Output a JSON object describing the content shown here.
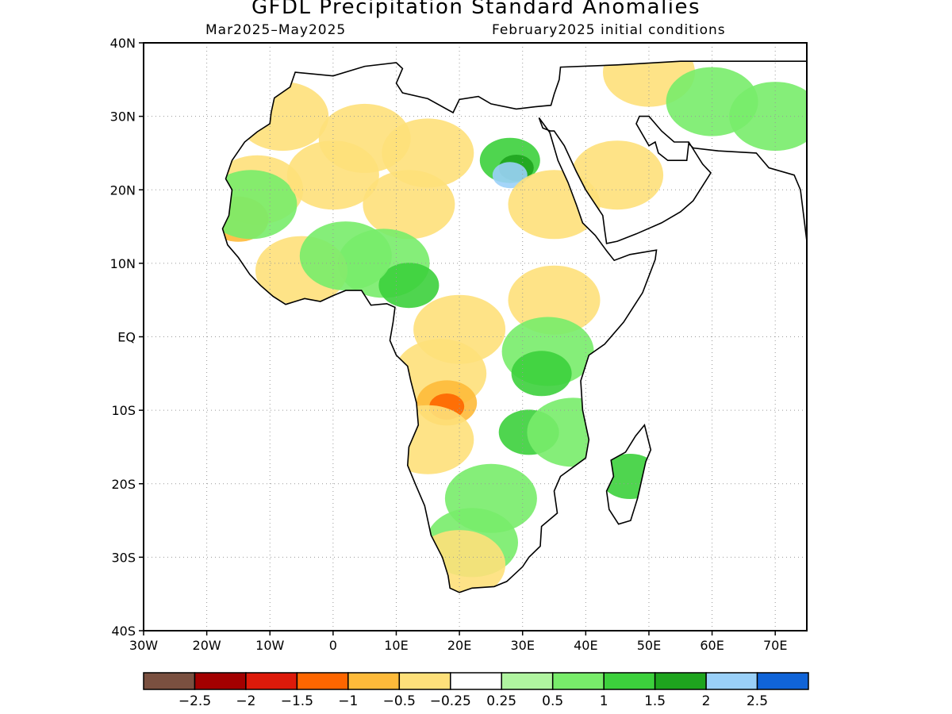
{
  "title": "GFDL Precipitation Standard Anomalies",
  "subtitle_left": "Mar2025–May2025",
  "subtitle_right": "February2025 initial conditions",
  "map": {
    "lon_range": [
      -30,
      75
    ],
    "lat_range": [
      -40,
      40
    ],
    "x_ticks": [
      {
        "lon": -30,
        "label": "30W"
      },
      {
        "lon": -20,
        "label": "20W"
      },
      {
        "lon": -10,
        "label": "10W"
      },
      {
        "lon": 0,
        "label": "0"
      },
      {
        "lon": 10,
        "label": "10E"
      },
      {
        "lon": 20,
        "label": "20E"
      },
      {
        "lon": 30,
        "label": "30E"
      },
      {
        "lon": 40,
        "label": "40E"
      },
      {
        "lon": 50,
        "label": "50E"
      },
      {
        "lon": 60,
        "label": "60E"
      },
      {
        "lon": 70,
        "label": "70E"
      }
    ],
    "y_ticks": [
      {
        "lat": 40,
        "label": "40N"
      },
      {
        "lat": 30,
        "label": "30N"
      },
      {
        "lat": 20,
        "label": "20N"
      },
      {
        "lat": 10,
        "label": "10N"
      },
      {
        "lat": 0,
        "label": "EQ"
      },
      {
        "lat": -10,
        "label": "10S"
      },
      {
        "lat": -20,
        "label": "20S"
      },
      {
        "lat": -30,
        "label": "30S"
      },
      {
        "lat": -40,
        "label": "40S"
      }
    ],
    "grid": true
  },
  "colorbar": {
    "colors": [
      "#7a5040",
      "#a30000",
      "#dd1a0a",
      "#fe6600",
      "#feba3a",
      "#fee07a",
      "#ffffff",
      "#b0f4a0",
      "#78ec6a",
      "#3cd03c",
      "#1ea41e",
      "#9ad0f8",
      "#1064d8"
    ],
    "labels": [
      "−2.5",
      "−2",
      "−1.5",
      "−1",
      "−0.5",
      "−0.25",
      "0.25",
      "0.5",
      "1",
      "1.5",
      "2",
      "2.5"
    ]
  },
  "anomaly_patches": [
    {
      "lon": -8,
      "lat": 30,
      "value": -0.5
    },
    {
      "lon": -12,
      "lat": 20,
      "value": -0.5
    },
    {
      "lon": -15,
      "lat": 16,
      "value": -1.0
    },
    {
      "lon": -13,
      "lat": 18,
      "value": 0.5
    },
    {
      "lon": 0,
      "lat": 22,
      "value": -0.5
    },
    {
      "lon": 5,
      "lat": 27,
      "value": -0.5
    },
    {
      "lon": 15,
      "lat": 25,
      "value": -0.5
    },
    {
      "lon": 12,
      "lat": 18,
      "value": -0.5
    },
    {
      "lon": 28,
      "lat": 24,
      "value": 1.0
    },
    {
      "lon": 29,
      "lat": 23,
      "value": 1.5
    },
    {
      "lon": 28,
      "lat": 22,
      "value": 2.0
    },
    {
      "lon": 35,
      "lat": 18,
      "value": -0.5
    },
    {
      "lon": 45,
      "lat": 22,
      "value": -0.5
    },
    {
      "lon": 50,
      "lat": 36,
      "value": -0.5
    },
    {
      "lon": 60,
      "lat": 32,
      "value": 0.5
    },
    {
      "lon": 70,
      "lat": 30,
      "value": 0.5
    },
    {
      "lon": 8,
      "lat": 10,
      "value": 0.5
    },
    {
      "lon": 12,
      "lat": 7,
      "value": 1.0
    },
    {
      "lon": -5,
      "lat": 9,
      "value": -0.5
    },
    {
      "lon": 2,
      "lat": 11,
      "value": 0.5
    },
    {
      "lon": 20,
      "lat": 1,
      "value": -0.5
    },
    {
      "lon": 17,
      "lat": -5,
      "value": -0.5
    },
    {
      "lon": 18,
      "lat": -9,
      "value": -1.0
    },
    {
      "lon": 18,
      "lat": -9.5,
      "value": -1.5
    },
    {
      "lon": 35,
      "lat": 5,
      "value": -0.5
    },
    {
      "lon": 34,
      "lat": -2,
      "value": 0.5
    },
    {
      "lon": 33,
      "lat": -5,
      "value": 1.0
    },
    {
      "lon": 31,
      "lat": -13,
      "value": 1.0
    },
    {
      "lon": 38,
      "lat": -13,
      "value": 0.5
    },
    {
      "lon": 25,
      "lat": -22,
      "value": 0.5
    },
    {
      "lon": 22,
      "lat": -28,
      "value": 0.5
    },
    {
      "lon": 20,
      "lat": -31,
      "value": -0.5
    },
    {
      "lon": 47,
      "lat": -19,
      "value": 1.0
    },
    {
      "lon": 15,
      "lat": -14,
      "value": -0.5
    }
  ]
}
